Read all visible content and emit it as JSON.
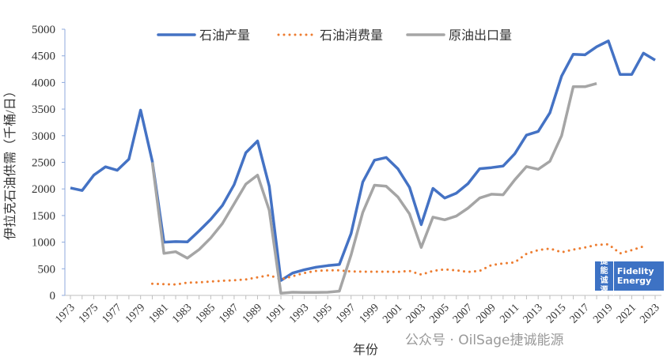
{
  "chart_data": {
    "type": "line",
    "title": "",
    "xlabel": "年份",
    "ylabel": "伊拉克石油供需（千桶/日）",
    "ylim": [
      0,
      5000
    ],
    "yticks": [
      0,
      500,
      1000,
      1500,
      2000,
      2500,
      3000,
      3500,
      4000,
      4500,
      5000
    ],
    "x": [
      1973,
      1974,
      1975,
      1976,
      1977,
      1978,
      1979,
      1980,
      1981,
      1982,
      1983,
      1984,
      1985,
      1986,
      1987,
      1988,
      1989,
      1990,
      1991,
      1992,
      1993,
      1994,
      1995,
      1996,
      1997,
      1998,
      1999,
      2000,
      2001,
      2002,
      2003,
      2004,
      2005,
      2006,
      2007,
      2008,
      2009,
      2010,
      2011,
      2012,
      2013,
      2014,
      2015,
      2016,
      2017,
      2018,
      2019,
      2020,
      2021,
      2022,
      2023
    ],
    "xtick_labels": [
      "1973",
      "1975",
      "1977",
      "1979",
      "1981",
      "1983",
      "1985",
      "1987",
      "1989",
      "1991",
      "1993",
      "1995",
      "1997",
      "1999",
      "2001",
      "2003",
      "2005",
      "2007",
      "2009",
      "2011",
      "2013",
      "2015",
      "2017",
      "2019",
      "2021",
      "2023"
    ],
    "legend_position": "top",
    "grid": false,
    "series": [
      {
        "name": "石油产量",
        "color": "#4472c4",
        "style": "solid",
        "values": [
          2020,
          1970,
          2260,
          2415,
          2350,
          2560,
          3480,
          2520,
          1000,
          1010,
          1005,
          1210,
          1430,
          1690,
          2080,
          2680,
          2900,
          2050,
          280,
          420,
          480,
          530,
          560,
          580,
          1160,
          2130,
          2540,
          2590,
          2380,
          2030,
          1330,
          2010,
          1830,
          1920,
          2100,
          2380,
          2400,
          2430,
          2660,
          3010,
          3080,
          3430,
          4120,
          4530,
          4520,
          4670,
          4780,
          4150,
          4150,
          4550,
          4420
        ]
      },
      {
        "name": "石油消费量",
        "color": "#ed7d31",
        "style": "dotted",
        "values": [
          null,
          null,
          null,
          null,
          null,
          null,
          null,
          220,
          210,
          205,
          240,
          245,
          260,
          275,
          285,
          300,
          340,
          380,
          300,
          360,
          420,
          460,
          470,
          470,
          450,
          445,
          445,
          445,
          440,
          460,
          390,
          460,
          490,
          470,
          440,
          460,
          570,
          600,
          620,
          780,
          850,
          880,
          810,
          860,
          900,
          950,
          960,
          790,
          850,
          920,
          null
        ]
      },
      {
        "name": "原油出口量",
        "color": "#a5a5a5",
        "style": "solid",
        "values": [
          null,
          null,
          null,
          null,
          null,
          null,
          null,
          2500,
          790,
          820,
          700,
          860,
          1080,
          1350,
          1720,
          2090,
          2260,
          1600,
          40,
          60,
          55,
          55,
          60,
          80,
          760,
          1560,
          2070,
          2050,
          1850,
          1530,
          900,
          1470,
          1420,
          1490,
          1640,
          1830,
          1900,
          1890,
          2170,
          2420,
          2370,
          2520,
          3000,
          3920,
          3920,
          3980,
          null,
          null,
          null,
          null,
          null
        ]
      }
    ]
  },
  "logo": {
    "cn": "捷能诚源",
    "en": "Fidelity Energy"
  },
  "watermark": "公众号 · OilSage捷诚能源"
}
